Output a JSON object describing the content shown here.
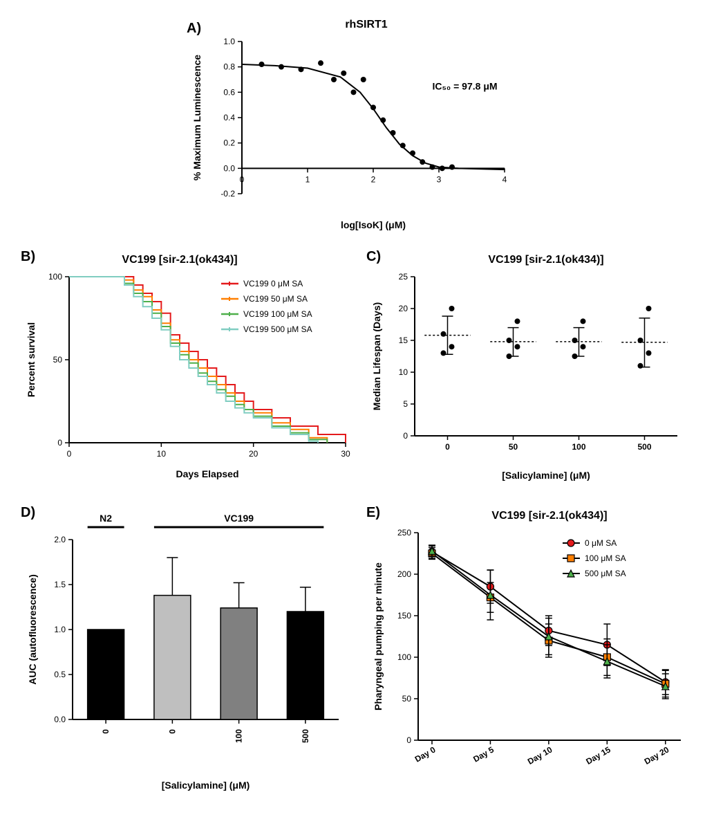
{
  "panelA": {
    "label": "A)",
    "title": "rhSIRT1",
    "xlabel": "log[IsoK] (μM)",
    "ylabel": "% Maximum Luminescence",
    "annotation": "IC₅₀ = 97.8 μM",
    "xlim": [
      0,
      4
    ],
    "ylim": [
      -0.2,
      1.0
    ],
    "xticks": [
      0,
      1,
      2,
      3,
      4
    ],
    "yticks": [
      -0.2,
      0.0,
      0.2,
      0.4,
      0.6,
      0.8,
      1.0
    ],
    "points": [
      [
        0.3,
        0.82
      ],
      [
        0.6,
        0.8
      ],
      [
        0.9,
        0.78
      ],
      [
        1.2,
        0.83
      ],
      [
        1.4,
        0.7
      ],
      [
        1.55,
        0.75
      ],
      [
        1.7,
        0.6
      ],
      [
        1.85,
        0.7
      ],
      [
        2.0,
        0.48
      ],
      [
        2.15,
        0.38
      ],
      [
        2.3,
        0.28
      ],
      [
        2.45,
        0.18
      ],
      [
        2.6,
        0.12
      ],
      [
        2.75,
        0.05
      ],
      [
        2.9,
        0.01
      ],
      [
        3.05,
        0.0
      ],
      [
        3.2,
        0.01
      ]
    ],
    "curve": [
      [
        0,
        0.82
      ],
      [
        0.5,
        0.81
      ],
      [
        1.0,
        0.79
      ],
      [
        1.5,
        0.72
      ],
      [
        1.8,
        0.6
      ],
      [
        2.0,
        0.47
      ],
      [
        2.2,
        0.32
      ],
      [
        2.4,
        0.19
      ],
      [
        2.6,
        0.1
      ],
      [
        2.8,
        0.04
      ],
      [
        3.0,
        0.01
      ],
      [
        3.3,
        0.0
      ],
      [
        4.0,
        -0.01
      ]
    ],
    "marker_color": "#000000",
    "marker_size": 4,
    "line_color": "#000000",
    "line_width": 2,
    "background": "#ffffff",
    "title_fontsize": 16,
    "label_fontsize": 14,
    "tick_fontsize": 12
  },
  "panelB": {
    "label": "B)",
    "title": "VC199 [sir-2.1(ok434)]",
    "xlabel": "Days Elapsed",
    "ylabel": "Percent survival",
    "xlim": [
      0,
      30
    ],
    "ylim": [
      0,
      100
    ],
    "xticks": [
      0,
      10,
      20,
      30
    ],
    "yticks": [
      0,
      50,
      100
    ],
    "legend": [
      {
        "label": "VC199 0 μM SA",
        "color": "#e41a1c"
      },
      {
        "label": "VC199 50 μM SA",
        "color": "#ff7f00"
      },
      {
        "label": "VC199 100 μM SA",
        "color": "#4daf4a"
      },
      {
        "label": "VC199 500 μM SA",
        "color": "#80cdc1"
      }
    ],
    "series": {
      "s1": {
        "color": "#e41a1c",
        "pts": [
          [
            0,
            100
          ],
          [
            6,
            100
          ],
          [
            7,
            95
          ],
          [
            8,
            90
          ],
          [
            9,
            85
          ],
          [
            10,
            78
          ],
          [
            11,
            65
          ],
          [
            12,
            60
          ],
          [
            13,
            55
          ],
          [
            14,
            50
          ],
          [
            15,
            45
          ],
          [
            16,
            40
          ],
          [
            17,
            35
          ],
          [
            18,
            30
          ],
          [
            19,
            25
          ],
          [
            20,
            20
          ],
          [
            22,
            15
          ],
          [
            24,
            10
          ],
          [
            27,
            5
          ],
          [
            30,
            0
          ]
        ]
      },
      "s2": {
        "color": "#ff7f00",
        "pts": [
          [
            0,
            100
          ],
          [
            6,
            98
          ],
          [
            7,
            92
          ],
          [
            8,
            88
          ],
          [
            9,
            80
          ],
          [
            10,
            72
          ],
          [
            11,
            62
          ],
          [
            12,
            55
          ],
          [
            13,
            50
          ],
          [
            14,
            45
          ],
          [
            15,
            40
          ],
          [
            16,
            35
          ],
          [
            17,
            30
          ],
          [
            18,
            25
          ],
          [
            19,
            20
          ],
          [
            20,
            18
          ],
          [
            22,
            12
          ],
          [
            24,
            8
          ],
          [
            26,
            3
          ],
          [
            28,
            0
          ]
        ]
      },
      "s3": {
        "color": "#4daf4a",
        "pts": [
          [
            0,
            100
          ],
          [
            6,
            96
          ],
          [
            7,
            90
          ],
          [
            8,
            85
          ],
          [
            9,
            78
          ],
          [
            10,
            70
          ],
          [
            11,
            60
          ],
          [
            12,
            53
          ],
          [
            13,
            48
          ],
          [
            14,
            42
          ],
          [
            15,
            37
          ],
          [
            16,
            32
          ],
          [
            17,
            28
          ],
          [
            18,
            23
          ],
          [
            19,
            20
          ],
          [
            20,
            16
          ],
          [
            22,
            10
          ],
          [
            24,
            6
          ],
          [
            26,
            2
          ],
          [
            28,
            0
          ]
        ]
      },
      "s4": {
        "color": "#80cdc1",
        "pts": [
          [
            0,
            100
          ],
          [
            6,
            95
          ],
          [
            7,
            88
          ],
          [
            8,
            82
          ],
          [
            9,
            75
          ],
          [
            10,
            68
          ],
          [
            11,
            58
          ],
          [
            12,
            50
          ],
          [
            13,
            45
          ],
          [
            14,
            40
          ],
          [
            15,
            35
          ],
          [
            16,
            30
          ],
          [
            17,
            25
          ],
          [
            18,
            21
          ],
          [
            19,
            18
          ],
          [
            20,
            15
          ],
          [
            22,
            9
          ],
          [
            24,
            5
          ],
          [
            26,
            1
          ],
          [
            27,
            0
          ]
        ]
      }
    },
    "line_width": 2,
    "title_fontsize": 16,
    "label_fontsize": 14,
    "tick_fontsize": 12
  },
  "panelC": {
    "label": "C)",
    "title": "VC199 [sir-2.1(ok434)]",
    "xlabel": "[Salicylamine] (μM)",
    "ylabel": "Median Lifespan (Days)",
    "categories": [
      "0",
      "50",
      "100",
      "500"
    ],
    "ylim": [
      0,
      25
    ],
    "yticks": [
      0,
      5,
      10,
      15,
      20,
      25
    ],
    "groups": [
      {
        "cat": "0",
        "points": [
          13,
          14,
          16,
          20
        ],
        "median": 15.8,
        "lo": 12.8,
        "hi": 18.8
      },
      {
        "cat": "50",
        "points": [
          12.5,
          14,
          15,
          18
        ],
        "median": 14.8,
        "lo": 12.5,
        "hi": 17.0
      },
      {
        "cat": "100",
        "points": [
          12.5,
          14,
          15,
          18
        ],
        "median": 14.8,
        "lo": 12.5,
        "hi": 17.0
      },
      {
        "cat": "500",
        "points": [
          11,
          13,
          15,
          20
        ],
        "median": 14.7,
        "lo": 10.8,
        "hi": 18.5
      }
    ],
    "marker_color": "#000000",
    "marker_size": 4,
    "title_fontsize": 16,
    "label_fontsize": 14,
    "tick_fontsize": 12
  },
  "panelD": {
    "label": "D)",
    "group_labels": {
      "n2": "N2",
      "vc": "VC199"
    },
    "xlabel": "[Salicylamine] (μM)",
    "ylabel": "AUC (autofluorescence)",
    "categories": [
      "0",
      "0",
      "100",
      "500"
    ],
    "ylim": [
      0,
      2.0
    ],
    "yticks": [
      0.0,
      0.5,
      1.0,
      1.5,
      2.0
    ],
    "bars": [
      {
        "cat": "0",
        "value": 1.0,
        "err": 0,
        "color": "#000000"
      },
      {
        "cat": "0",
        "value": 1.38,
        "err": 0.42,
        "color": "#bfbfbf"
      },
      {
        "cat": "100",
        "value": 1.24,
        "err": 0.28,
        "color": "#808080"
      },
      {
        "cat": "500",
        "value": 1.2,
        "err": 0.27,
        "color": "#000000"
      }
    ],
    "bar_width": 0.55,
    "title_fontsize": 16,
    "label_fontsize": 14,
    "tick_fontsize": 12
  },
  "panelE": {
    "label": "E)",
    "title": "VC199 [sir-2.1(ok434)]",
    "xlabel_prefix": "Day ",
    "ylabel": "Pharyngeal pumping per minute",
    "categories": [
      "0",
      "5",
      "10",
      "15",
      "20"
    ],
    "ylim": [
      0,
      250
    ],
    "yticks": [
      0,
      50,
      100,
      150,
      200,
      250
    ],
    "legend": [
      {
        "label": "0 μM SA",
        "color": "#e41a1c",
        "marker": "circle"
      },
      {
        "label": "100 μM SA",
        "color": "#ff7f00",
        "marker": "square"
      },
      {
        "label": "500 μM SA",
        "color": "#4daf4a",
        "marker": "triangle"
      }
    ],
    "series": [
      {
        "color": "#e41a1c",
        "marker": "circle",
        "pts": [
          [
            0,
            227,
            8
          ],
          [
            1,
            185,
            20
          ],
          [
            2,
            132,
            18
          ],
          [
            3,
            115,
            25
          ],
          [
            4,
            70,
            15
          ]
        ]
      },
      {
        "color": "#ff7f00",
        "marker": "square",
        "pts": [
          [
            0,
            225,
            7
          ],
          [
            1,
            172,
            18
          ],
          [
            2,
            120,
            20
          ],
          [
            3,
            100,
            22
          ],
          [
            4,
            68,
            16
          ]
        ]
      },
      {
        "color": "#4daf4a",
        "marker": "triangle",
        "pts": [
          [
            0,
            228,
            6
          ],
          [
            1,
            175,
            30
          ],
          [
            2,
            125,
            22
          ],
          [
            3,
            95,
            20
          ],
          [
            4,
            65,
            15
          ]
        ]
      }
    ],
    "line_color": "#000000",
    "line_width": 2,
    "title_fontsize": 16,
    "label_fontsize": 14,
    "tick_fontsize": 12
  }
}
